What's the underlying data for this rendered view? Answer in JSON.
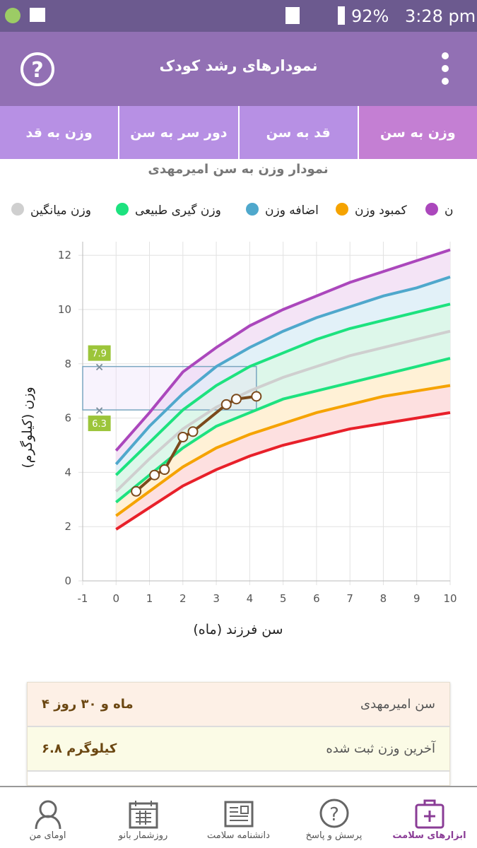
{
  "status_bar": {
    "battery": "92%",
    "time": "3:28 pm"
  },
  "app_bar": {
    "title": "نمودارهای رشد کودک"
  },
  "tabs": [
    "وزن به سن",
    "قد به سن",
    "دور سر به سن",
    "وزن به قد"
  ],
  "chart_data": {
    "type": "line",
    "title": "نمودار وزن به سن امیرمهدی",
    "xlabel": "سن فرزند (ماه)",
    "ylabel": "وزن (کیلوگرم)",
    "x": [
      0,
      1,
      2,
      3,
      4,
      5,
      6,
      7,
      8,
      9,
      10
    ],
    "series": [
      {
        "name": "ن",
        "color": "#ab47bc",
        "values": [
          4.8,
          6.2,
          7.7,
          8.6,
          9.4,
          10.0,
          10.5,
          11.0,
          11.4,
          11.8,
          12.2
        ]
      },
      {
        "name": "اضافه وزن",
        "color": "#4fa8cc",
        "values": [
          4.3,
          5.7,
          6.9,
          7.9,
          8.6,
          9.2,
          9.7,
          10.1,
          10.5,
          10.8,
          11.2
        ]
      },
      {
        "name": "وزن گیری طبیعی",
        "color": "#1de27f",
        "values": [
          3.9,
          5.1,
          6.3,
          7.2,
          7.9,
          8.4,
          8.9,
          9.3,
          9.6,
          9.9,
          10.2
        ]
      },
      {
        "name": "وزن میانگین",
        "color": "#cfcfcf",
        "values": [
          3.3,
          4.5,
          5.6,
          6.4,
          7.0,
          7.5,
          7.9,
          8.3,
          8.6,
          8.9,
          9.2
        ]
      },
      {
        "color": "#1de27f",
        "values": [
          2.9,
          3.9,
          4.9,
          5.7,
          6.2,
          6.7,
          7.0,
          7.3,
          7.6,
          7.9,
          8.2
        ]
      },
      {
        "name": "کمبود وزن",
        "color": "#f5a300",
        "values": [
          2.4,
          3.3,
          4.2,
          4.9,
          5.4,
          5.8,
          6.2,
          6.5,
          6.8,
          7.0,
          7.2
        ]
      },
      {
        "color": "#e8202a",
        "values": [
          1.9,
          2.7,
          3.5,
          4.1,
          4.6,
          5.0,
          5.3,
          5.6,
          5.8,
          6.0,
          6.2
        ]
      },
      {
        "color": "#7b4a1c",
        "x": [
          0.6,
          1.15,
          1.45,
          2.0,
          2.3,
          3.3,
          3.6,
          4.2
        ],
        "values": [
          3.3,
          3.9,
          4.1,
          5.3,
          5.5,
          6.5,
          6.7,
          6.8
        ]
      }
    ],
    "range": {
      "x": -0.5,
      "low": 6.3,
      "high": 7.9
    },
    "xlim": [
      -1,
      10
    ],
    "xticks": [
      -1,
      0,
      1,
      2,
      3,
      4,
      5,
      6,
      7,
      8,
      9,
      10
    ],
    "ylim": [
      0,
      12.5
    ],
    "yticks": [
      0,
      2,
      4,
      6,
      8,
      10,
      12
    ],
    "grid": true
  },
  "info": {
    "rows": [
      [
        "سن امیرمهدی",
        "۴ ماه و ۳۰ روز"
      ],
      [
        "آخرین وزن ثبت شده",
        "۶.۸ کیلوگرم"
      ]
    ]
  },
  "bottom_nav": [
    "ابزارهای سلامت",
    "پرسش و پاسخ",
    "دانشنامه سلامت",
    "روزشمار بانو",
    "اومای من"
  ]
}
